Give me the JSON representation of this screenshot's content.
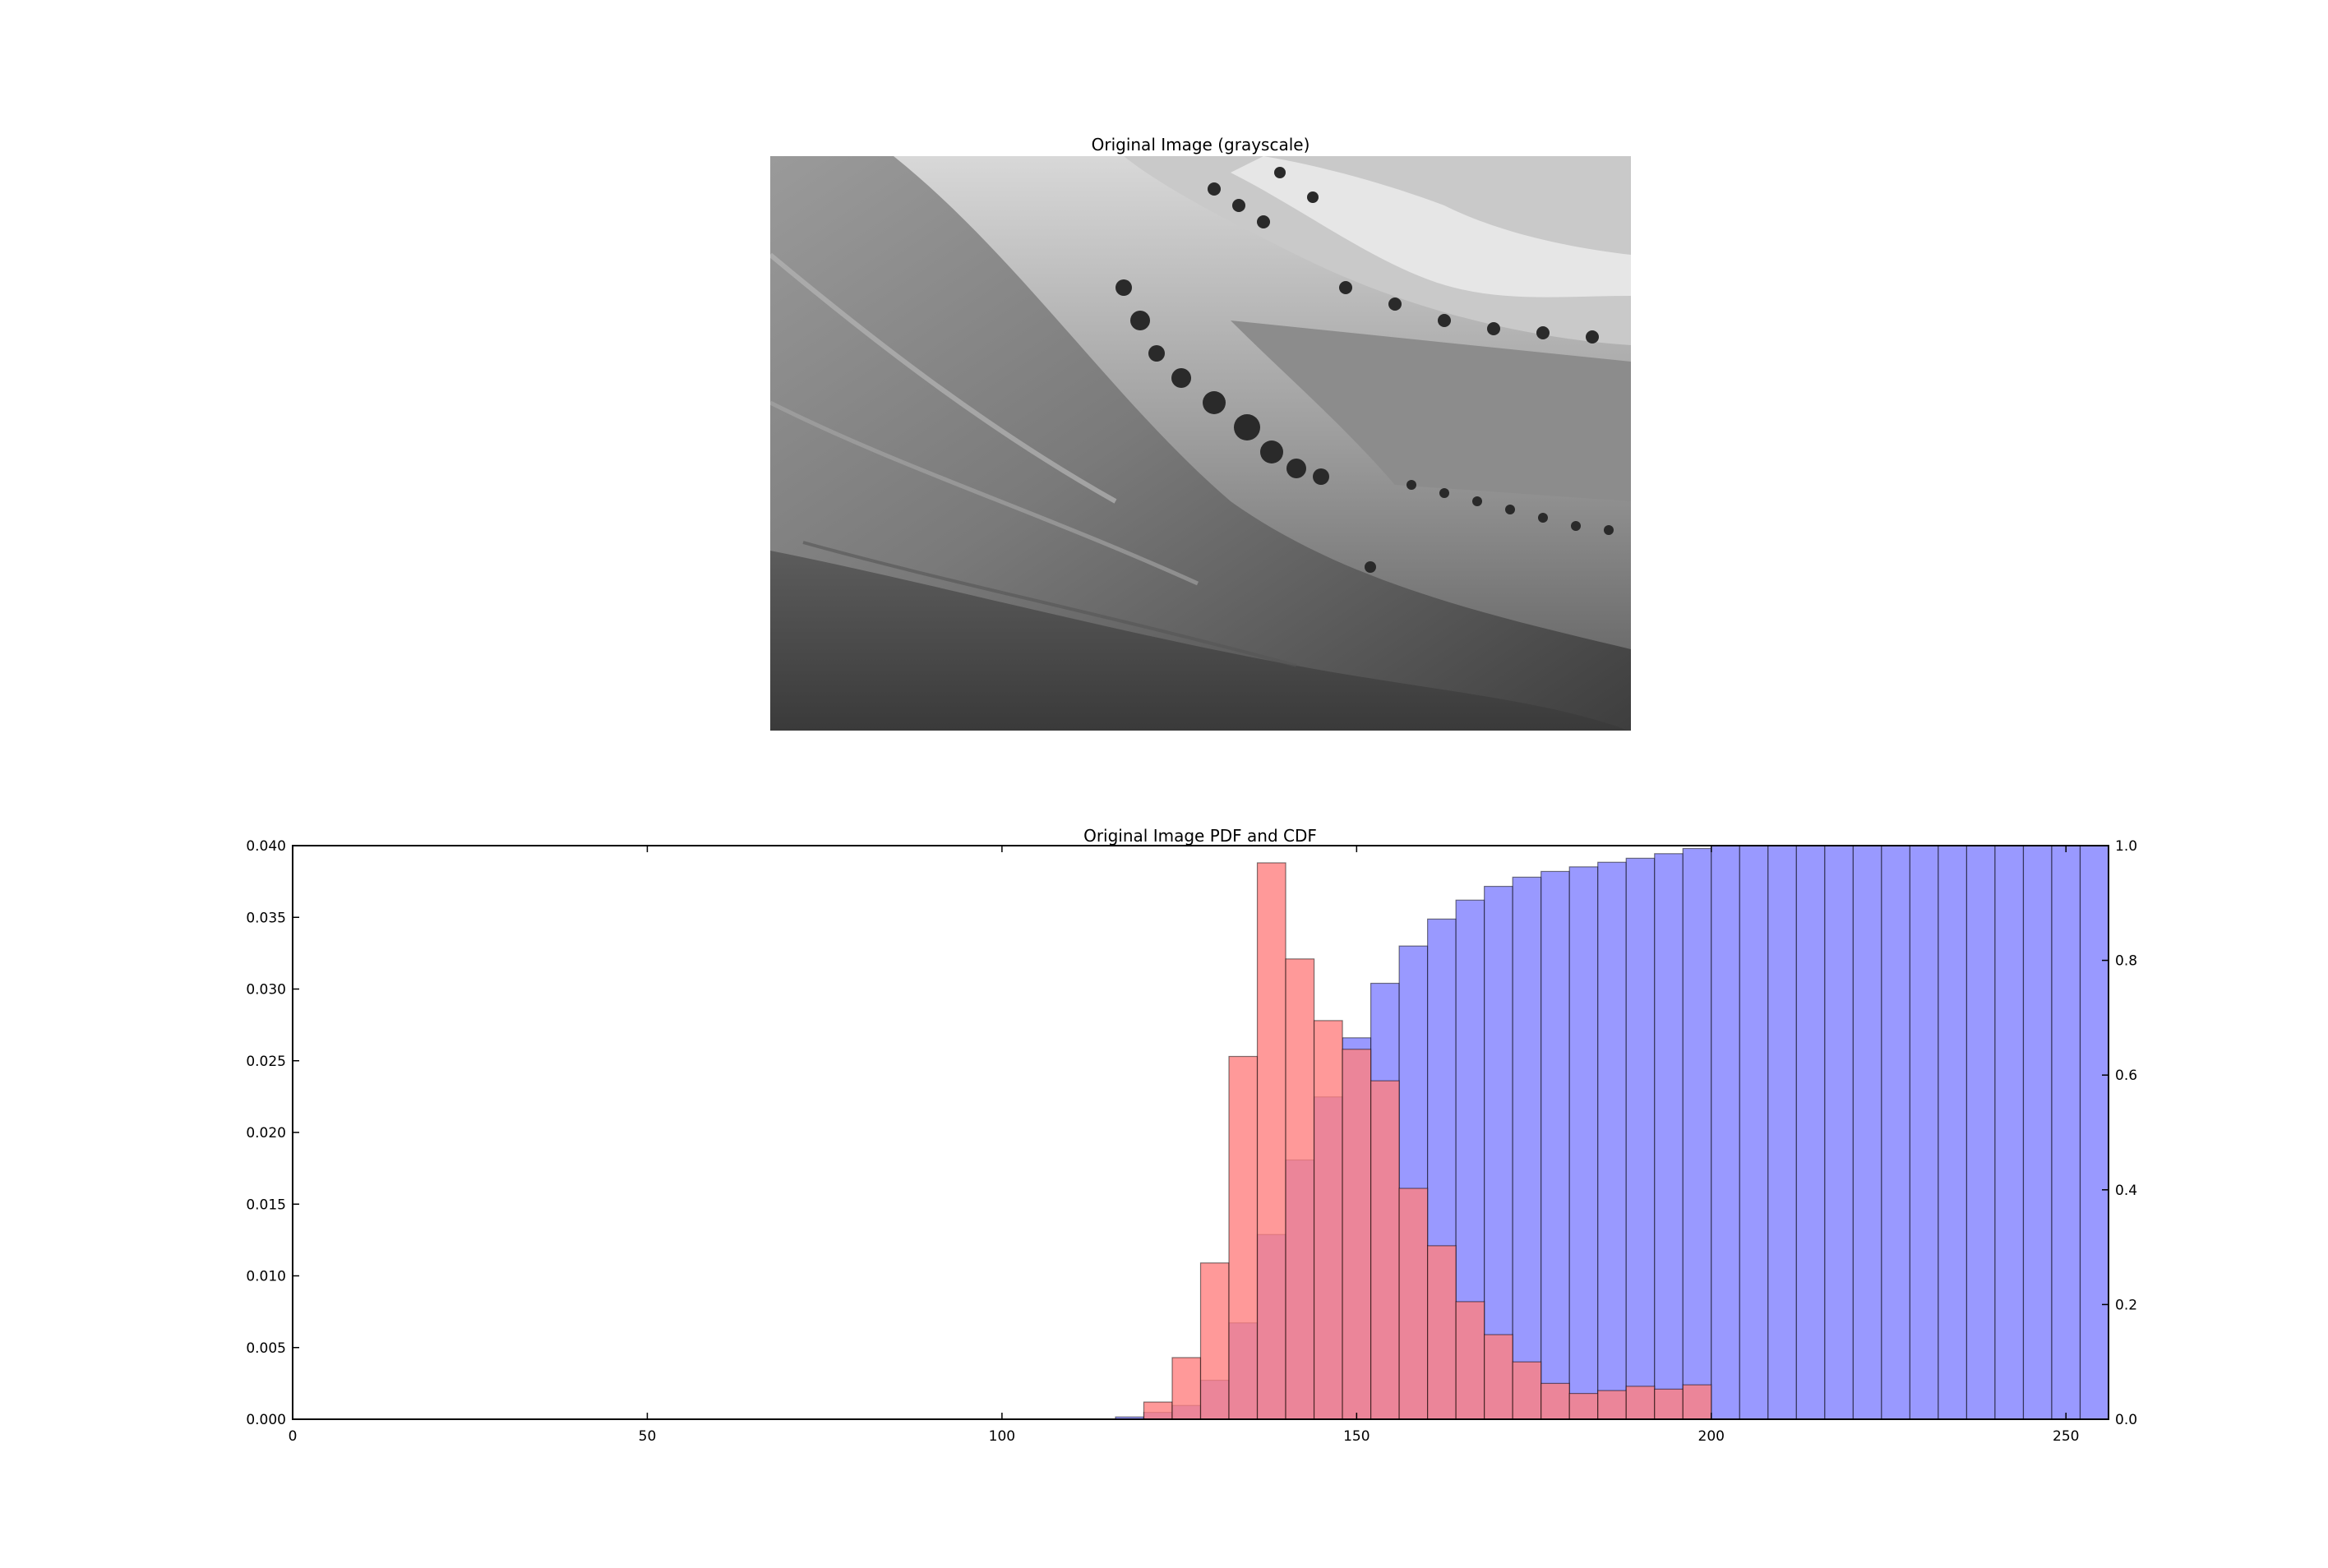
{
  "image_panel": {
    "title": "Original Image (grayscale)",
    "description_icon": "grayscale-landscape-photo"
  },
  "chart_data": {
    "type": "bar",
    "title": "Original Image PDF and CDF",
    "xlabel": "",
    "ylabel": "",
    "xlim": [
      0,
      256
    ],
    "ylim_left": [
      0,
      0.04
    ],
    "ylim_right": [
      0,
      1.0
    ],
    "x_ticks": [
      "0",
      "50",
      "100",
      "150",
      "200",
      "250"
    ],
    "y_ticks_left": [
      "0.000",
      "0.005",
      "0.010",
      "0.015",
      "0.020",
      "0.025",
      "0.030",
      "0.035",
      "0.040"
    ],
    "y_ticks_right": [
      "0.0",
      "0.2",
      "0.4",
      "0.6",
      "0.8",
      "1.0"
    ],
    "grid": false,
    "legend": "none",
    "bin_edges": [
      116,
      120,
      124,
      128,
      132,
      136,
      140,
      144,
      148,
      152,
      156,
      160,
      164,
      168,
      172,
      176,
      180,
      184,
      188,
      192,
      196,
      200,
      204,
      208,
      212,
      216,
      220,
      224,
      228,
      232,
      236,
      240,
      244,
      248,
      252,
      256
    ],
    "series": [
      {
        "role": "pdf",
        "axis": "left",
        "color": "#ff8080",
        "values": [
          0.0,
          0.0012,
          0.0043,
          0.0109,
          0.0253,
          0.0388,
          0.0321,
          0.0278,
          0.0258,
          0.0236,
          0.0161,
          0.0121,
          0.0082,
          0.0059,
          0.004,
          0.0025,
          0.0018,
          0.002,
          0.0023,
          0.0021,
          0.0024,
          0,
          0,
          0,
          0,
          0,
          0,
          0,
          0,
          0,
          0,
          0,
          0,
          0,
          0
        ]
      },
      {
        "role": "cdf",
        "axis": "right",
        "color": "#8080ff",
        "values": [
          0.004,
          0.012,
          0.024,
          0.068,
          0.168,
          0.322,
          0.452,
          0.562,
          0.665,
          0.76,
          0.825,
          0.872,
          0.905,
          0.929,
          0.945,
          0.955,
          0.963,
          0.971,
          0.978,
          0.986,
          0.995,
          1.0,
          1.0,
          1.0,
          1.0,
          1.0,
          1.0,
          1.0,
          1.0,
          1.0,
          1.0,
          1.0,
          1.0,
          1.0,
          1.0
        ]
      }
    ]
  }
}
